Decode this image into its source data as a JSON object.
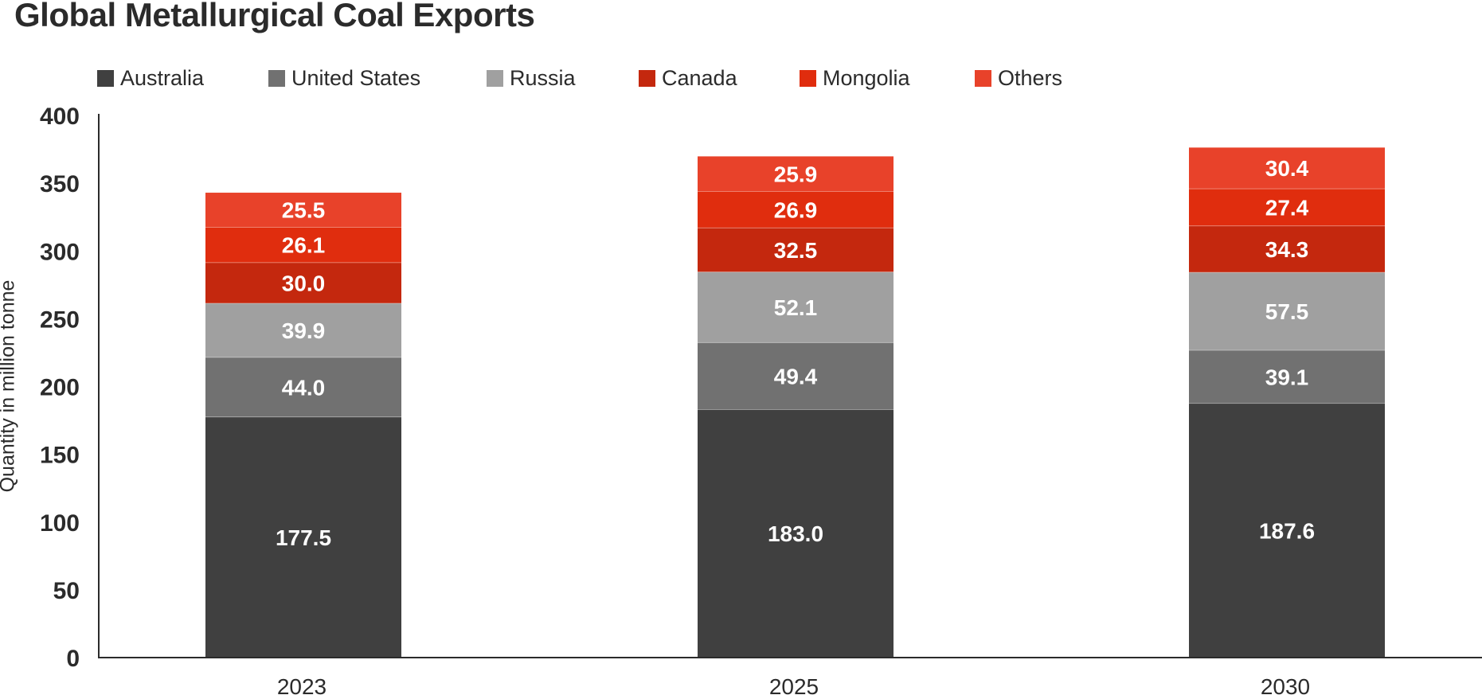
{
  "chart_data": {
    "type": "bar",
    "stacked": true,
    "title": "Global Metallurgical Coal Exports",
    "ylabel": "Quantity in million tonne",
    "xlabel": "",
    "ylim": [
      0,
      400
    ],
    "yticks": [
      0,
      50,
      100,
      150,
      200,
      250,
      300,
      350,
      400
    ],
    "legend_position": "top-left",
    "grid": false,
    "categories": [
      "2023",
      "2025",
      "2030"
    ],
    "series": [
      {
        "name": "Australia",
        "color": "#404040",
        "values": [
          177.5,
          183.0,
          187.6
        ],
        "labels": [
          "177.5",
          "183.0",
          "187.6"
        ]
      },
      {
        "name": "United States",
        "color": "#717171",
        "values": [
          44.0,
          49.4,
          39.1
        ],
        "labels": [
          "44.0",
          "49.4",
          "39.1"
        ]
      },
      {
        "name": "Russia",
        "color": "#a0a0a0",
        "values": [
          39.9,
          52.1,
          57.5
        ],
        "labels": [
          "39.9",
          "52.1",
          "57.5"
        ]
      },
      {
        "name": "Canada",
        "color": "#c4280e",
        "values": [
          30.0,
          32.5,
          34.3
        ],
        "labels": [
          "30.0",
          "32.5",
          "34.3"
        ]
      },
      {
        "name": "Mongolia",
        "color": "#e02d0e",
        "values": [
          26.1,
          26.9,
          27.4
        ],
        "labels": [
          "26.1",
          "26.9",
          "27.4"
        ]
      },
      {
        "name": "Others",
        "color": "#e8422a",
        "values": [
          25.5,
          25.9,
          30.4
        ],
        "labels": [
          "25.5",
          "25.9",
          "30.4"
        ]
      }
    ]
  }
}
